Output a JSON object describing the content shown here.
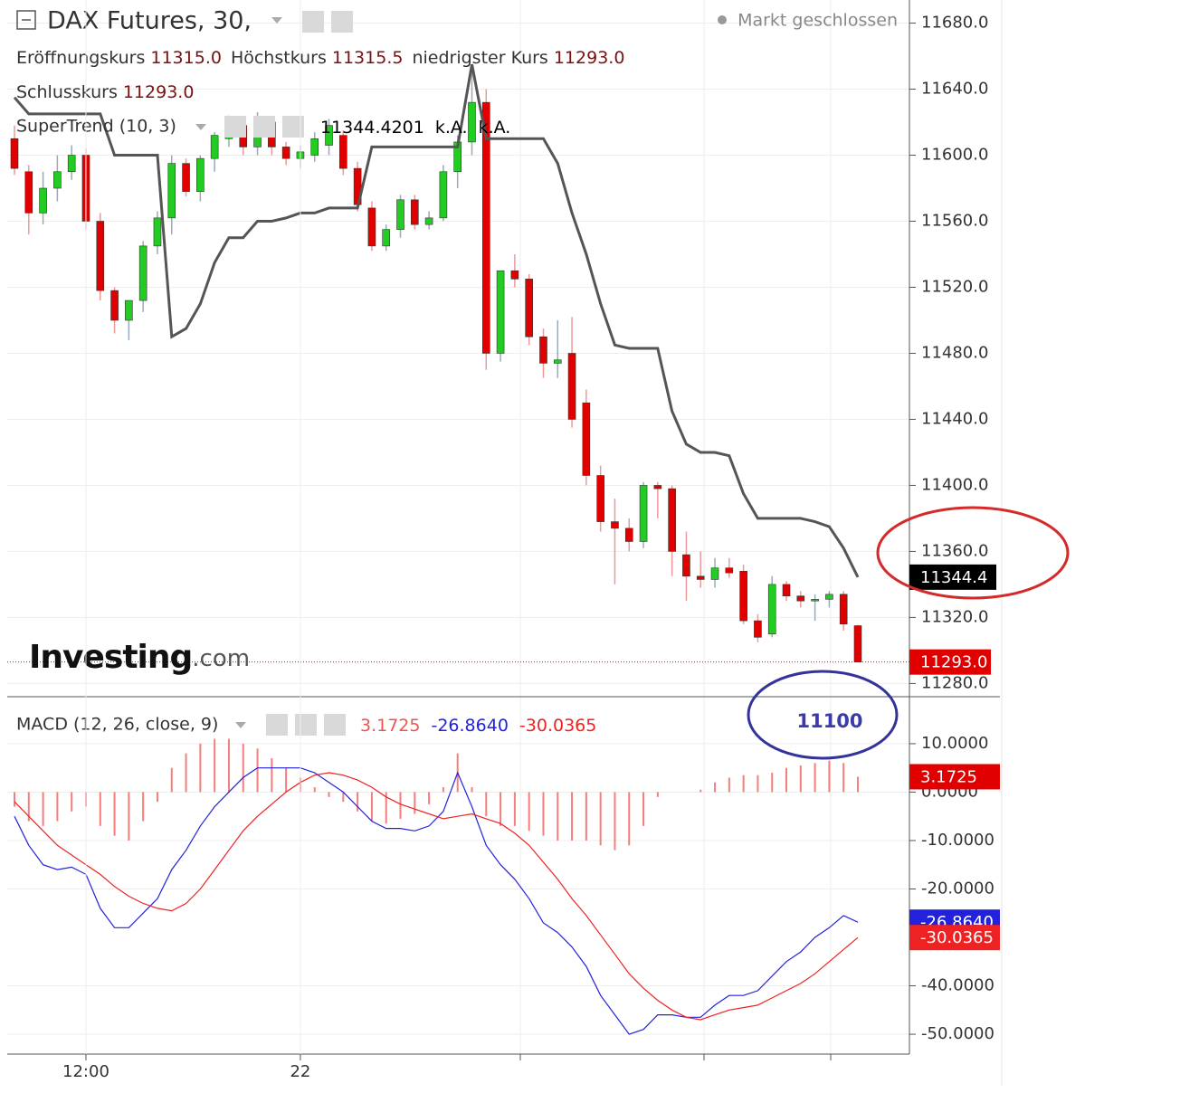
{
  "header": {
    "status": "Markt geschlossen"
  },
  "logo": {
    "name": "Investing",
    "suffix": ".com"
  },
  "annotation": "11100",
  "chart_data": [
    {
      "type": "candlestick",
      "title": "DAX Futures, 30,",
      "ohlc_legend": [
        {
          "label": "Eröffnungskurs",
          "value": "11315.0"
        },
        {
          "label": "Höchstkurs",
          "value": "11315.5"
        },
        {
          "label": "niedrigster Kurs",
          "value": "11293.0"
        },
        {
          "label": "Schlusskurs",
          "value": "11293.0"
        }
      ],
      "ylim": [
        11272,
        11694
      ],
      "yticks": [
        {
          "value": 11280,
          "label": "11280.0"
        },
        {
          "value": 11320,
          "label": "11320.0"
        },
        {
          "value": 11360,
          "label": "11360.0"
        },
        {
          "value": 11400,
          "label": "11400.0"
        },
        {
          "value": 11440,
          "label": "11440.0"
        },
        {
          "value": 11480,
          "label": "11480.0"
        },
        {
          "value": 11520,
          "label": "11520.0"
        },
        {
          "value": 11560,
          "label": "11560.0"
        },
        {
          "value": 11600,
          "label": "11600.0"
        },
        {
          "value": 11640,
          "label": "11640.0"
        },
        {
          "value": 11680,
          "label": "11680.0"
        }
      ],
      "grid": true,
      "candles": {
        "up_color": "#22cc22",
        "down_color": "#e00000",
        "last_label": "11293.0",
        "open": [
          11610,
          11590,
          11565,
          11580,
          11590,
          11600,
          11560,
          11518,
          11500,
          11512,
          11545,
          11562,
          11595,
          11578,
          11598,
          11610,
          11618,
          11605,
          11620,
          11605,
          11598,
          11600,
          11606,
          11612,
          11592,
          11568,
          11545,
          11555,
          11573,
          11558,
          11562,
          11590,
          11608,
          11632,
          11480,
          11530,
          11525,
          11490,
          11474,
          11480,
          11450,
          11406,
          11378,
          11374,
          11366,
          11400,
          11398,
          11358,
          11345,
          11343,
          11350,
          11348,
          11318,
          11310,
          11340,
          11333,
          11330,
          11331,
          11334,
          11315
        ],
        "high": [
          11618,
          11594,
          11590,
          11600,
          11606,
          11604,
          11565,
          11520,
          11512,
          11548,
          11566,
          11600,
          11598,
          11600,
          11614,
          11624,
          11622,
          11626,
          11622,
          11608,
          11606,
          11614,
          11622,
          11615,
          11596,
          11572,
          11558,
          11576,
          11576,
          11566,
          11594,
          11612,
          11655,
          11640,
          11530,
          11540,
          11528,
          11495,
          11500,
          11502,
          11458,
          11412,
          11392,
          11380,
          11402,
          11402,
          11400,
          11372,
          11360,
          11356,
          11356,
          11352,
          11322,
          11345,
          11342,
          11336,
          11334,
          11336,
          11336,
          11315.5
        ],
        "low": [
          11588,
          11552,
          11558,
          11572,
          11585,
          11555,
          11512,
          11492,
          11488,
          11505,
          11540,
          11552,
          11575,
          11572,
          11590,
          11605,
          11600,
          11600,
          11600,
          11594,
          11592,
          11596,
          11600,
          11588,
          11566,
          11542,
          11542,
          11550,
          11555,
          11555,
          11560,
          11580,
          11600,
          11470,
          11475,
          11520,
          11485,
          11465,
          11465,
          11435,
          11400,
          11372,
          11340,
          11360,
          11362,
          11380,
          11345,
          11330,
          11338,
          11338,
          11344,
          11316,
          11305,
          11308,
          11330,
          11326,
          11318,
          11326,
          11312,
          11293
        ],
        "close": [
          11592,
          11565,
          11580,
          11590,
          11600,
          11560,
          11518,
          11500,
          11512,
          11545,
          11562,
          11595,
          11578,
          11598,
          11612,
          11620,
          11605,
          11620,
          11605,
          11598,
          11602,
          11610,
          11618,
          11592,
          11570,
          11545,
          11555,
          11573,
          11558,
          11562,
          11590,
          11608,
          11632,
          11480,
          11530,
          11525,
          11490,
          11474,
          11476,
          11440,
          11406,
          11378,
          11374,
          11366,
          11400,
          11398,
          11360,
          11345,
          11343,
          11350,
          11347,
          11318,
          11308,
          11340,
          11333,
          11330,
          11331,
          11334,
          11316,
          11293
        ]
      },
      "series": [
        {
          "name": "SuperTrend (10, 3)",
          "color": "#555555",
          "legend_values": [
            "11344.4201",
            "k.A.",
            "k.A."
          ],
          "last_label": "11344.4",
          "values": [
            11635,
            11625,
            11625,
            11625,
            11625,
            11625,
            11625,
            11600,
            11600,
            11600,
            11600,
            11490,
            11495,
            11510,
            11535,
            11550,
            11550,
            11560,
            11560,
            11562,
            11565,
            11565,
            11568,
            11568,
            11568,
            11605,
            11605,
            11605,
            11605,
            11605,
            11605,
            11605,
            11655,
            11610,
            11610,
            11610,
            11610,
            11610,
            11595,
            11565,
            11540,
            11510,
            11485,
            11483,
            11483,
            11483,
            11445,
            11425,
            11420,
            11420,
            11418,
            11395,
            11380,
            11380,
            11380,
            11380,
            11378,
            11375,
            11362,
            11344.4201
          ]
        }
      ]
    },
    {
      "type": "macd",
      "title": "MACD (12, 26, close, 9)",
      "categories": [
        null,
        null,
        null,
        null,
        null,
        "12:00",
        null,
        null,
        null,
        null,
        null,
        null,
        null,
        null,
        null,
        null,
        null,
        null,
        null,
        null,
        "22",
        null,
        null,
        null,
        null,
        null,
        null,
        null,
        null,
        null,
        null,
        null,
        null,
        null,
        null,
        null,
        null,
        null,
        null,
        null,
        null,
        null,
        null,
        null,
        null,
        null,
        null,
        null,
        null,
        null,
        null,
        null,
        null,
        null,
        null,
        null,
        null,
        null,
        null,
        null
      ],
      "ylim": [
        -54.1,
        19.7
      ],
      "yticks": [
        {
          "value": -50,
          "label": "-50.0000"
        },
        {
          "value": -40,
          "label": "-40.0000"
        },
        {
          "value": -20,
          "label": "-20.0000"
        },
        {
          "value": -10,
          "label": "-10.0000"
        },
        {
          "value": 0,
          "label": "0.0000"
        },
        {
          "value": 10,
          "label": "10.0000"
        }
      ],
      "grid": true,
      "series": [
        {
          "kind": "histogram",
          "color": "#ef5350",
          "last_label": "3.1725",
          "values": [
            -3,
            -6,
            -7,
            -6,
            -4,
            -3,
            -7,
            -9,
            -10,
            -6,
            -2,
            5,
            8,
            10,
            11,
            11,
            10,
            9,
            7,
            5,
            3,
            1,
            -1,
            -2,
            -4,
            -6,
            -6.5,
            -5.5,
            -4.5,
            -2.5,
            1,
            8,
            1,
            -5,
            -7,
            -7,
            -8,
            -9,
            -10,
            -10,
            -10,
            -11,
            -12,
            -11,
            -7,
            -1,
            0,
            0,
            0.5,
            2,
            3,
            3.5,
            3.5,
            4,
            5,
            5.5,
            6,
            6.5,
            6,
            3.1725
          ]
        },
        {
          "kind": "line",
          "color": "#2222dd",
          "last_label": "-26.8640",
          "values": [
            -5,
            -11,
            -15,
            -16,
            -15.5,
            -17,
            -24,
            -28,
            -28,
            -25,
            -22,
            -16,
            -12,
            -7,
            -3,
            0,
            3,
            5,
            5,
            5,
            5,
            4,
            2,
            0,
            -3,
            -6,
            -7.5,
            -7.5,
            -8,
            -7,
            -4,
            4,
            -3,
            -11,
            -15,
            -18,
            -22,
            -27,
            -29,
            -32,
            -36,
            -42,
            -46,
            -50,
            -49,
            -46,
            -46,
            -46.5,
            -46.5,
            -44,
            -42,
            -42,
            -41,
            -38,
            -35,
            -33,
            -30,
            -28,
            -25.5,
            -26.864
          ]
        },
        {
          "kind": "line",
          "color": "#ee2222",
          "last_label": "-30.0365",
          "values": [
            -2,
            -5,
            -8,
            -11,
            -13,
            -15,
            -17,
            -19.5,
            -21.5,
            -23,
            -24,
            -24.5,
            -23,
            -20,
            -16,
            -12,
            -8,
            -5,
            -2.5,
            0,
            2,
            3.5,
            4,
            3.5,
            2.5,
            1,
            -1,
            -2.5,
            -3.5,
            -4.5,
            -5.5,
            -5,
            -4.5,
            -5.5,
            -6.5,
            -8.5,
            -11,
            -14.5,
            -18,
            -22,
            -25.5,
            -29.5,
            -33.5,
            -37.5,
            -40.5,
            -43,
            -45,
            -46.5,
            -47,
            -46,
            -45,
            -44.5,
            -44,
            -42.5,
            -41,
            -39.5,
            -37.5,
            -35,
            -32.5,
            -30.0365
          ]
        }
      ]
    }
  ]
}
